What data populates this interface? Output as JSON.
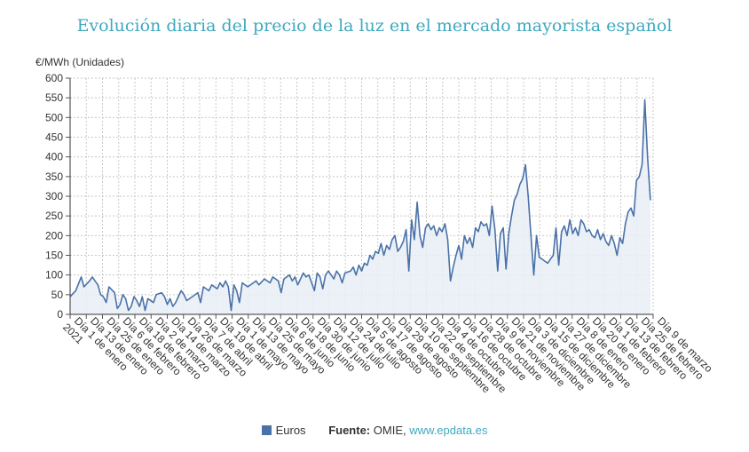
{
  "chart_data": {
    "type": "area",
    "title": "Evolución diaria del precio de la luz en el mercado mayorista español",
    "ylabel": "€/MWh (Unidades)",
    "xlabel": "",
    "ylim": [
      0,
      600
    ],
    "yticks": [
      0,
      50,
      100,
      150,
      200,
      250,
      300,
      350,
      400,
      450,
      500,
      550,
      600
    ],
    "grid": true,
    "legend_position": "bottom",
    "categories": [
      "Día 1 de enero 2021",
      "Día 13 de enero",
      "Día 25 de enero",
      "Día 6 de febrero",
      "Día 18 de febrero",
      "Día 2 de marzo",
      "Día 14 de marzo",
      "Día 26 de marzo",
      "Día 7 de abril",
      "Día 19 de abril",
      "Día 1 de mayo",
      "Día 13 de mayo",
      "Día 25 de mayo",
      "Día 6 de junio",
      "Día 18 de junio",
      "Día 30 de junio",
      "Día 12 de julio",
      "Día 24 de julio",
      "Día 5 de agosto",
      "Día 17 de agosto",
      "Día 29 de agosto",
      "Día 10 de septiembre",
      "Día 22 de septiembre",
      "Día 4 de octubre",
      "Día 16 de octubre",
      "Día 28 de octubre",
      "Día 9 de noviembre",
      "Día 21 de noviembre",
      "Día 3 de diciembre",
      "Día 15 de diciembre",
      "Día 27 de diciembre",
      "Día 8 de enero",
      "Día 20 de enero",
      "Día 1 de febrero",
      "Día 13 de febrero",
      "Día 25 de febrero",
      "Día 9 de marzo"
    ],
    "series": [
      {
        "name": "Euros",
        "color": "#4a72a8",
        "points": [
          [
            0,
            45
          ],
          [
            2,
            60
          ],
          [
            4,
            95
          ],
          [
            5,
            70
          ],
          [
            7,
            85
          ],
          [
            8,
            95
          ],
          [
            10,
            75
          ],
          [
            11,
            50
          ],
          [
            12,
            45
          ],
          [
            13,
            30
          ],
          [
            14,
            70
          ],
          [
            16,
            55
          ],
          [
            17,
            15
          ],
          [
            18,
            25
          ],
          [
            19,
            50
          ],
          [
            20,
            40
          ],
          [
            21,
            10
          ],
          [
            22,
            20
          ],
          [
            23,
            45
          ],
          [
            24,
            35
          ],
          [
            25,
            20
          ],
          [
            26,
            45
          ],
          [
            27,
            10
          ],
          [
            28,
            40
          ],
          [
            30,
            30
          ],
          [
            31,
            50
          ],
          [
            33,
            55
          ],
          [
            34,
            45
          ],
          [
            35,
            25
          ],
          [
            36,
            40
          ],
          [
            37,
            20
          ],
          [
            38,
            30
          ],
          [
            40,
            60
          ],
          [
            41,
            50
          ],
          [
            42,
            35
          ],
          [
            44,
            45
          ],
          [
            46,
            55
          ],
          [
            47,
            30
          ],
          [
            48,
            70
          ],
          [
            50,
            60
          ],
          [
            51,
            75
          ],
          [
            53,
            65
          ],
          [
            54,
            80
          ],
          [
            55,
            70
          ],
          [
            56,
            85
          ],
          [
            57,
            70
          ],
          [
            58,
            10
          ],
          [
            59,
            75
          ],
          [
            60,
            60
          ],
          [
            61,
            30
          ],
          [
            62,
            80
          ],
          [
            64,
            70
          ],
          [
            66,
            80
          ],
          [
            67,
            85
          ],
          [
            68,
            75
          ],
          [
            70,
            90
          ],
          [
            72,
            80
          ],
          [
            73,
            95
          ],
          [
            75,
            85
          ],
          [
            76,
            55
          ],
          [
            77,
            90
          ],
          [
            79,
            100
          ],
          [
            80,
            85
          ],
          [
            81,
            95
          ],
          [
            82,
            75
          ],
          [
            84,
            105
          ],
          [
            85,
            95
          ],
          [
            86,
            100
          ],
          [
            88,
            60
          ],
          [
            89,
            105
          ],
          [
            90,
            95
          ],
          [
            91,
            65
          ],
          [
            92,
            100
          ],
          [
            93,
            110
          ],
          [
            95,
            90
          ],
          [
            96,
            110
          ],
          [
            97,
            100
          ],
          [
            98,
            80
          ],
          [
            99,
            105
          ],
          [
            101,
            110
          ],
          [
            102,
            120
          ],
          [
            103,
            100
          ],
          [
            104,
            125
          ],
          [
            105,
            110
          ],
          [
            106,
            130
          ],
          [
            107,
            125
          ],
          [
            108,
            150
          ],
          [
            109,
            140
          ],
          [
            110,
            160
          ],
          [
            111,
            155
          ],
          [
            112,
            180
          ],
          [
            113,
            150
          ],
          [
            114,
            175
          ],
          [
            115,
            165
          ],
          [
            116,
            190
          ],
          [
            117,
            200
          ],
          [
            118,
            160
          ],
          [
            119,
            170
          ],
          [
            120,
            185
          ],
          [
            121,
            215
          ],
          [
            122,
            110
          ],
          [
            123,
            240
          ],
          [
            124,
            190
          ],
          [
            125,
            285
          ],
          [
            126,
            200
          ],
          [
            127,
            170
          ],
          [
            128,
            220
          ],
          [
            129,
            230
          ],
          [
            130,
            215
          ],
          [
            131,
            225
          ],
          [
            132,
            200
          ],
          [
            133,
            220
          ],
          [
            134,
            210
          ],
          [
            135,
            230
          ],
          [
            136,
            190
          ],
          [
            137,
            85
          ],
          [
            138,
            120
          ],
          [
            139,
            150
          ],
          [
            140,
            175
          ],
          [
            141,
            140
          ],
          [
            142,
            200
          ],
          [
            143,
            180
          ],
          [
            144,
            195
          ],
          [
            145,
            170
          ],
          [
            146,
            220
          ],
          [
            147,
            210
          ],
          [
            148,
            235
          ],
          [
            149,
            225
          ],
          [
            150,
            230
          ],
          [
            151,
            200
          ],
          [
            152,
            275
          ],
          [
            153,
            215
          ],
          [
            154,
            110
          ],
          [
            155,
            205
          ],
          [
            156,
            220
          ],
          [
            157,
            115
          ],
          [
            158,
            205
          ],
          [
            159,
            250
          ],
          [
            160,
            290
          ],
          [
            161,
            305
          ],
          [
            162,
            330
          ],
          [
            163,
            345
          ],
          [
            164,
            380
          ],
          [
            165,
            300
          ],
          [
            166,
            200
          ],
          [
            167,
            100
          ],
          [
            168,
            200
          ],
          [
            169,
            145
          ],
          [
            170,
            140
          ],
          [
            171,
            135
          ],
          [
            172,
            130
          ],
          [
            173,
            140
          ],
          [
            174,
            150
          ],
          [
            175,
            220
          ],
          [
            176,
            125
          ],
          [
            177,
            210
          ],
          [
            178,
            225
          ],
          [
            179,
            200
          ],
          [
            180,
            240
          ],
          [
            181,
            205
          ],
          [
            182,
            220
          ],
          [
            183,
            200
          ],
          [
            184,
            240
          ],
          [
            185,
            230
          ],
          [
            186,
            210
          ],
          [
            187,
            215
          ],
          [
            188,
            200
          ],
          [
            189,
            195
          ],
          [
            190,
            215
          ],
          [
            191,
            190
          ],
          [
            192,
            205
          ],
          [
            193,
            185
          ],
          [
            194,
            175
          ],
          [
            195,
            200
          ],
          [
            196,
            180
          ],
          [
            197,
            150
          ],
          [
            198,
            195
          ],
          [
            199,
            180
          ],
          [
            200,
            230
          ],
          [
            201,
            260
          ],
          [
            202,
            270
          ],
          [
            203,
            250
          ],
          [
            204,
            340
          ],
          [
            205,
            350
          ],
          [
            206,
            380
          ],
          [
            207,
            545
          ],
          [
            208,
            400
          ],
          [
            209,
            290
          ]
        ]
      }
    ]
  },
  "legend": {
    "label": "Euros",
    "source_label": "Fuente:",
    "source_text": "OMIE,",
    "source_link": "www.epdata.es"
  }
}
